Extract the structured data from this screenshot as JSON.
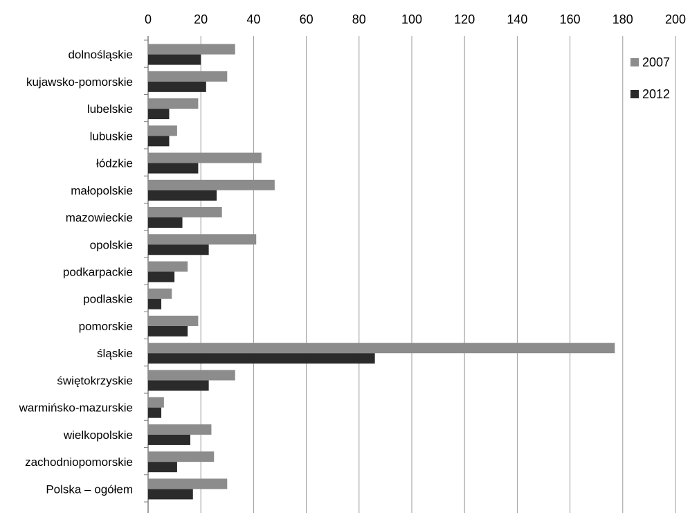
{
  "chart_data": {
    "type": "bar",
    "orientation": "horizontal",
    "title": "",
    "xlabel": "",
    "ylabel": "",
    "xlim": [
      0,
      200
    ],
    "x_ticks": [
      0,
      20,
      40,
      60,
      80,
      100,
      120,
      140,
      160,
      180,
      200
    ],
    "x_axis_position": "top",
    "grid": true,
    "legend_position": "right",
    "categories": [
      "dolnośląskie",
      "kujawsko-pomorskie",
      "lubelskie",
      "lubuskie",
      "łódzkie",
      "małopolskie",
      "mazowieckie",
      "opolskie",
      "podkarpackie",
      "podlaskie",
      "pomorskie",
      "śląskie",
      "świętokrzyskie",
      "warmińsko-mazurskie",
      "wielkopolskie",
      "zachodniopomorskie",
      "Polska – ogółem"
    ],
    "series": [
      {
        "name": "2007",
        "color": "#8c8c8c",
        "values": [
          33,
          30,
          19,
          11,
          43,
          48,
          28,
          41,
          15,
          9,
          19,
          177,
          33,
          6,
          24,
          25,
          30
        ]
      },
      {
        "name": "2012",
        "color": "#2b2b2b",
        "values": [
          20,
          22,
          8,
          8,
          19,
          26,
          13,
          23,
          10,
          5,
          15,
          86,
          23,
          5,
          16,
          11,
          17
        ]
      }
    ]
  }
}
